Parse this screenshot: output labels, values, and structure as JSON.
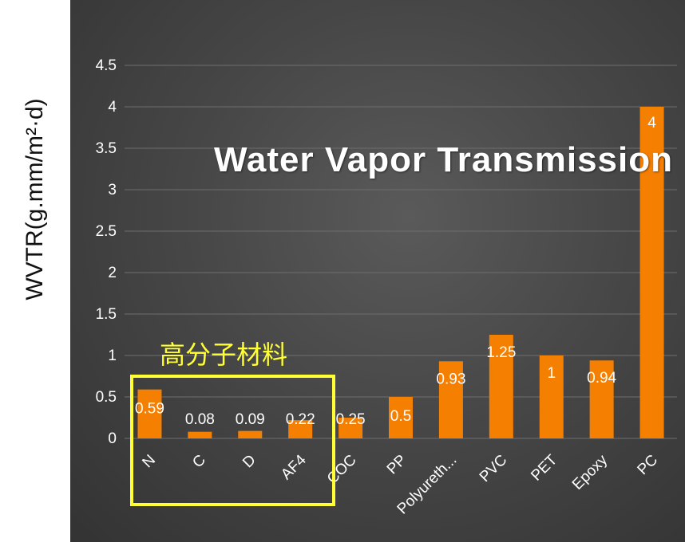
{
  "chart_data": {
    "type": "bar",
    "title": "Water Vapor Transmission",
    "ylabel": "WVTR(g.mm/m²·d)",
    "xlabel": "",
    "categories": [
      "N",
      "C",
      "D",
      "AF4",
      "COC",
      "PP",
      "Polyureth...",
      "PVC",
      "PET",
      "Epoxy",
      "PC"
    ],
    "values": [
      0.59,
      0.08,
      0.09,
      0.22,
      0.25,
      0.5,
      0.93,
      1.25,
      1,
      0.94,
      4
    ],
    "data_labels": [
      "0.59",
      "0.08",
      "0.09",
      "0.22",
      "0.25",
      "0.5",
      "0.93",
      "1.25",
      "1",
      "0.94",
      "4"
    ],
    "yticks": [
      "0",
      "0.5",
      "1",
      "1.5",
      "2",
      "2.5",
      "3",
      "3.5",
      "4",
      "4.5"
    ],
    "ylim": [
      0,
      4.5
    ],
    "grid": true,
    "legend": "none",
    "bar_color": "#f57f00",
    "annotation": {
      "text": "高分子材料",
      "color": "#ffff33"
    }
  }
}
